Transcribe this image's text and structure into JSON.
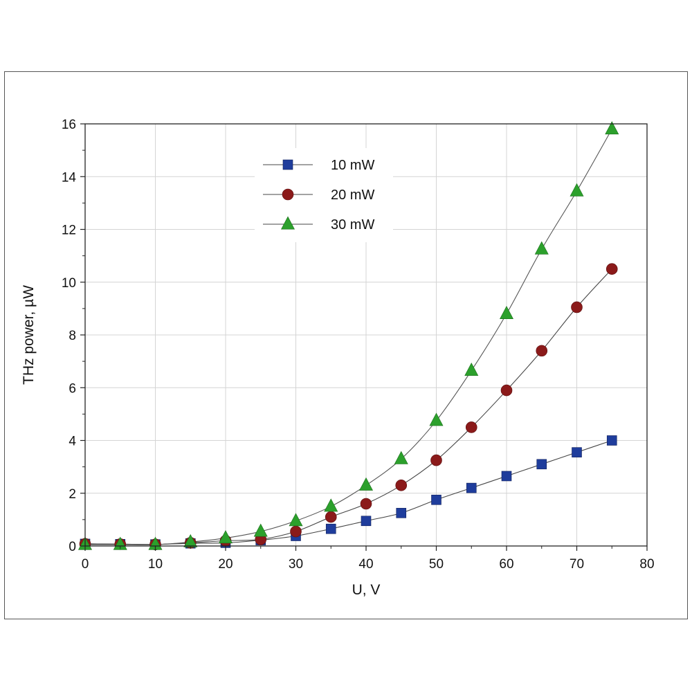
{
  "chart_data": {
    "type": "line",
    "xlabel": "U, V",
    "ylabel": "THz power, µW",
    "xlim": [
      0,
      80
    ],
    "ylim": [
      0,
      16
    ],
    "xticks": [
      "0",
      "10",
      "20",
      "30",
      "40",
      "50",
      "60",
      "70",
      "80"
    ],
    "yticks": [
      "0",
      "2",
      "4",
      "6",
      "8",
      "10",
      "12",
      "14",
      "16"
    ],
    "grid": true,
    "legend_position": "top-left inside plot",
    "x": [
      0,
      5,
      10,
      15,
      20,
      25,
      30,
      35,
      40,
      45,
      50,
      55,
      60,
      65,
      70,
      75
    ],
    "series": [
      {
        "name": "10 mW",
        "marker": "square",
        "color": "#1f3d9c",
        "values": [
          0.08,
          0.07,
          0.06,
          0.1,
          0.12,
          0.22,
          0.38,
          0.65,
          0.95,
          1.25,
          1.75,
          2.2,
          2.65,
          3.1,
          3.55,
          4.0
        ]
      },
      {
        "name": "20 mW",
        "marker": "circle",
        "color": "#8b1a1a",
        "values": [
          0.08,
          0.07,
          0.06,
          0.12,
          0.2,
          0.25,
          0.55,
          1.1,
          1.6,
          2.3,
          3.25,
          4.5,
          5.9,
          7.4,
          9.05,
          10.5
        ]
      },
      {
        "name": "30 mW",
        "marker": "triangle",
        "color": "#2ca02c",
        "values": [
          0.05,
          0.05,
          0.05,
          0.15,
          0.3,
          0.55,
          0.95,
          1.5,
          2.3,
          3.3,
          4.75,
          6.65,
          8.8,
          11.25,
          13.45,
          15.8
        ]
      }
    ]
  }
}
